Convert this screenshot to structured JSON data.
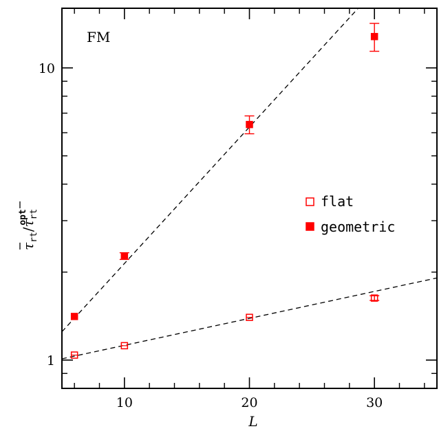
{
  "chart_data": {
    "type": "scatter",
    "title": "",
    "annotation": "FM",
    "xlabel": "L",
    "ylabel": {
      "main": "τ",
      "main_sub": "rt",
      "sep": "/",
      "denom": "τ",
      "denom_sub": "rt",
      "denom_sup": "opt"
    },
    "xlim": [
      5,
      35
    ],
    "ylim": [
      0.8,
      16
    ],
    "yscale": "log",
    "x_ticks": [
      10,
      20,
      30
    ],
    "x_tick_labels": [
      "10",
      "20",
      "30"
    ],
    "y_ticks": [
      1,
      10
    ],
    "y_tick_labels": [
      "1",
      "10"
    ],
    "x_minor_step": 2,
    "color": "#ff0000",
    "legend_position": "right-middle",
    "series": [
      {
        "name": "flat",
        "marker": "open-square",
        "points": [
          {
            "x": 6,
            "y": 1.04,
            "err": 0.01
          },
          {
            "x": 10,
            "y": 1.12,
            "err": 0.012
          },
          {
            "x": 20,
            "y": 1.4,
            "err": 0.02
          },
          {
            "x": 30,
            "y": 1.63,
            "err": 0.03
          }
        ],
        "fit": {
          "from": [
            5,
            1.01
          ],
          "to": [
            35,
            1.91
          ]
        }
      },
      {
        "name": "geometric",
        "marker": "filled-square",
        "points": [
          {
            "x": 6,
            "y": 1.41,
            "err": 0.02
          },
          {
            "x": 10,
            "y": 2.27,
            "err": 0.06
          },
          {
            "x": 20,
            "y": 6.4,
            "err": 0.45
          },
          {
            "x": 30,
            "y": 12.8,
            "err": 1.4
          }
        ],
        "fit": {
          "from": [
            5,
            1.25
          ],
          "to": [
            28.7,
            16
          ]
        }
      }
    ]
  }
}
